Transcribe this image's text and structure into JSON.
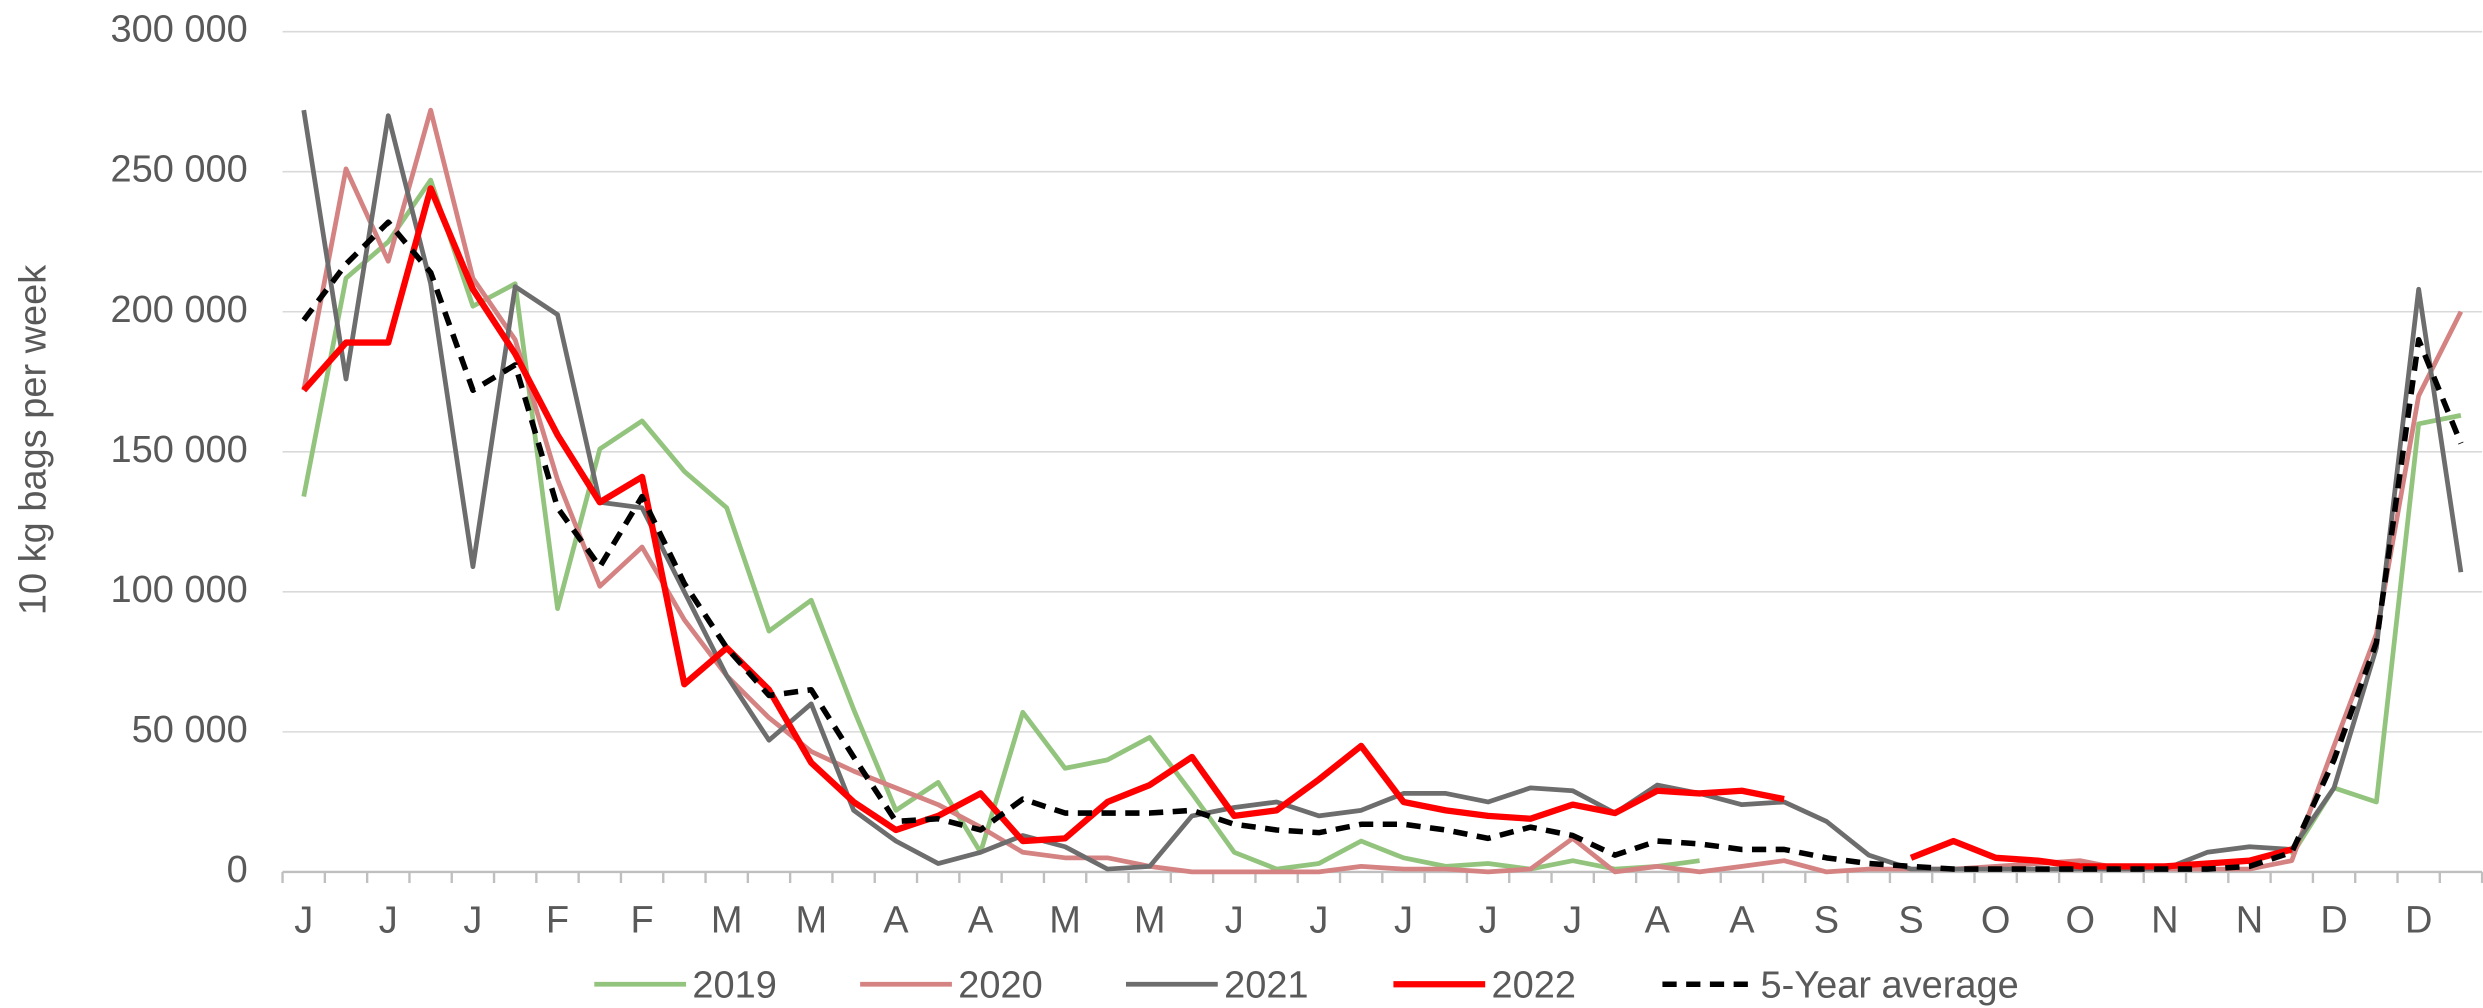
{
  "chart_data": {
    "type": "line",
    "y_label": "10 kg bags per week",
    "categories": [
      "J",
      null,
      "J",
      null,
      "J",
      null,
      "F",
      null,
      "F",
      null,
      "M",
      null,
      "M",
      null,
      "A",
      null,
      "A",
      null,
      "M",
      null,
      "M",
      null,
      "J",
      null,
      "J",
      null,
      "J",
      null,
      "J",
      null,
      "J",
      null,
      "A",
      null,
      "A",
      null,
      "S",
      null,
      "S",
      null,
      "O",
      null,
      "O",
      null,
      "N",
      null,
      "N",
      null,
      "D",
      null,
      "D",
      null
    ],
    "ylim": [
      0,
      300000
    ],
    "yticks": [
      {
        "value": 0,
        "label": "0"
      },
      {
        "value": 50000,
        "label": "50 000"
      },
      {
        "value": 100000,
        "label": "100 000"
      },
      {
        "value": 150000,
        "label": "150 000"
      },
      {
        "value": 200000,
        "label": "200 000"
      },
      {
        "value": 250000,
        "label": "250 000"
      },
      {
        "value": 300000,
        "label": "300 000"
      }
    ],
    "grid": true,
    "legend": "bottom",
    "series": [
      {
        "name": "2019",
        "color": "#93c47d",
        "width": 3,
        "dashed": false,
        "values": [
          134000,
          212000,
          225000,
          247000,
          202000,
          210000,
          94000,
          151000,
          161000,
          143000,
          130000,
          86000,
          97000,
          58000,
          22000,
          32000,
          7000,
          57000,
          37000,
          40000,
          48000,
          28000,
          7000,
          1000,
          3000,
          11000,
          5000,
          2000,
          3000,
          1000,
          4000,
          1000,
          2000,
          4000,
          null,
          null,
          null,
          null,
          null,
          null,
          null,
          null,
          null,
          null,
          null,
          null,
          null,
          6000,
          30000,
          25000,
          160000,
          163000
        ]
      },
      {
        "name": "2020",
        "color": "#d48282",
        "width": 3,
        "dashed": false,
        "values": [
          172000,
          251000,
          218000,
          272000,
          212000,
          190000,
          140000,
          102000,
          116000,
          90000,
          70000,
          55000,
          43000,
          36000,
          30000,
          24000,
          16000,
          7000,
          5000,
          5000,
          2000,
          0,
          0,
          0,
          0,
          2000,
          1000,
          1000,
          0,
          1000,
          12000,
          0,
          2000,
          0,
          2000,
          4000,
          0,
          1000,
          1000,
          1000,
          2000,
          3000,
          4000,
          1000,
          1000,
          1000,
          1000,
          4000,
          45000,
          85000,
          170000,
          200000
        ]
      },
      {
        "name": "2021",
        "color": "#6d6d6d",
        "width": 3,
        "dashed": false,
        "values": [
          272000,
          176000,
          270000,
          210000,
          109000,
          209000,
          199000,
          132000,
          130000,
          100000,
          70000,
          47000,
          60000,
          22000,
          11000,
          3000,
          7000,
          13000,
          9000,
          1000,
          2000,
          20000,
          23000,
          25000,
          20000,
          22000,
          28000,
          28000,
          25000,
          30000,
          29000,
          21000,
          31000,
          28000,
          24000,
          25000,
          18000,
          6000,
          1000,
          1000,
          1000,
          1000,
          1000,
          1000,
          1000,
          7000,
          9000,
          8000,
          30000,
          80000,
          208000,
          107000
        ]
      },
      {
        "name": "2022",
        "color": "#ff0000",
        "width": 4,
        "dashed": false,
        "values": [
          172000,
          189000,
          189000,
          244000,
          208000,
          185000,
          156000,
          132000,
          141000,
          67000,
          80000,
          65000,
          39000,
          25000,
          15000,
          20000,
          28000,
          11000,
          12000,
          25000,
          31000,
          41000,
          20000,
          22000,
          33000,
          45000,
          25000,
          22000,
          20000,
          19000,
          24000,
          21000,
          29000,
          28000,
          29000,
          26000,
          null,
          null,
          5000,
          11000,
          5000,
          4000,
          2000,
          2000,
          2000,
          3000,
          4000,
          8000,
          null,
          null,
          null,
          null
        ]
      },
      {
        "name": "5-Year average",
        "color": "#000000",
        "width": 3.5,
        "dashed": true,
        "values": [
          197000,
          217000,
          232000,
          214000,
          172000,
          181000,
          130000,
          109000,
          134000,
          103000,
          80000,
          63000,
          65000,
          41000,
          18000,
          19000,
          15000,
          26000,
          21000,
          21000,
          21000,
          22000,
          17000,
          15000,
          14000,
          17000,
          17000,
          15000,
          12000,
          16000,
          13000,
          6000,
          11000,
          10000,
          8000,
          8000,
          5000,
          3000,
          2000,
          1000,
          1000,
          1000,
          1000,
          1000,
          1000,
          1000,
          2000,
          7000,
          40000,
          82000,
          190000,
          153000
        ]
      }
    ]
  }
}
